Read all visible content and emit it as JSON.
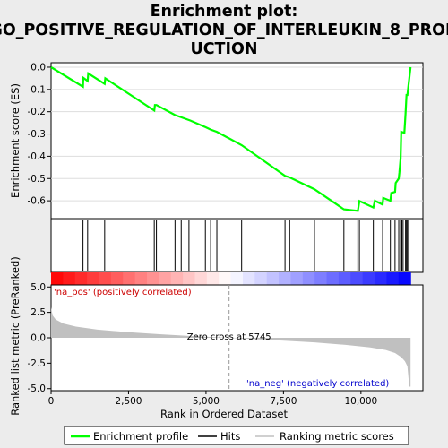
{
  "title_lines": [
    "Enrichment plot:",
    "GO_POSITIVE_REGULATION_OF_INTERLEUKIN_8_PROD",
    "UCTION"
  ],
  "chart_data": {
    "type": "line",
    "total_genes": 11600,
    "es_axis": {
      "label": "Enrichment score (ES)",
      "ylim": [
        -0.68,
        0.02
      ],
      "ticks": [
        0.0,
        -0.1,
        -0.2,
        -0.3,
        -0.4,
        -0.5,
        -0.6
      ],
      "tick_labels": [
        "0.0",
        "-0.1",
        "-0.2",
        "-0.3",
        "-0.4",
        "-0.5",
        "-0.6"
      ]
    },
    "metric_axis": {
      "label": "Ranked list metric (PreRanked)",
      "ylim": [
        -5.2,
        5.2
      ],
      "ticks": [
        5.0,
        2.5,
        0.0,
        -2.5,
        -5.0
      ],
      "tick_labels": [
        "5.0",
        "2.5",
        "0.0",
        "-2.5",
        "-5.0"
      ]
    },
    "x_axis": {
      "label": "Rank in Ordered Dataset",
      "xlim": [
        0,
        12000
      ],
      "ticks": [
        0,
        2500,
        5000,
        7500,
        10000
      ],
      "tick_labels": [
        "0",
        "2,500",
        "5,000",
        "7,500",
        "10,000"
      ]
    },
    "enrichment_profile": {
      "name": "Enrichment profile",
      "color": "#00ff00",
      "x": [
        0,
        1030,
        1040,
        1180,
        1200,
        1730,
        1750,
        3330,
        3350,
        3400,
        4000,
        4200,
        4500,
        5000,
        5150,
        5350,
        6150,
        7550,
        7700,
        8500,
        9450,
        9900,
        9950,
        10400,
        10450,
        10700,
        10720,
        10950,
        10980,
        11100,
        11120,
        11220,
        11240,
        11280,
        11300,
        11400,
        11440,
        11470,
        11500,
        11600
      ],
      "y": [
        0.0,
        -0.088,
        -0.048,
        -0.062,
        -0.028,
        -0.075,
        -0.05,
        -0.195,
        -0.17,
        -0.17,
        -0.215,
        -0.225,
        -0.24,
        -0.27,
        -0.28,
        -0.29,
        -0.35,
        -0.488,
        -0.495,
        -0.548,
        -0.638,
        -0.645,
        -0.601,
        -0.63,
        -0.6,
        -0.617,
        -0.587,
        -0.6,
        -0.565,
        -0.56,
        -0.52,
        -0.5,
        -0.475,
        -0.41,
        -0.29,
        -0.295,
        -0.21,
        -0.125,
        -0.125,
        0.0
      ]
    },
    "hits": {
      "name": "Hits",
      "positions": [
        1030,
        1180,
        1730,
        3330,
        3400,
        4000,
        4200,
        4450,
        4980,
        5150,
        5350,
        6150,
        7550,
        7700,
        8500,
        9450,
        9900,
        9950,
        10400,
        10700,
        10950,
        11100,
        11220,
        11280,
        11320,
        11360,
        11440,
        11470,
        11500,
        11540
      ]
    },
    "ranking_metric": {
      "name": "Ranking metric scores",
      "color": "#c0c0c0",
      "x": [
        0,
        50,
        150,
        400,
        800,
        1500,
        2500,
        3500,
        4500,
        5745,
        7000,
        8500,
        9500,
        10300,
        10800,
        11100,
        11300,
        11420,
        11500,
        11560,
        11600
      ],
      "y": [
        3.0,
        2.2,
        1.8,
        1.4,
        1.1,
        0.8,
        0.55,
        0.35,
        0.18,
        0.0,
        -0.2,
        -0.45,
        -0.7,
        -0.95,
        -1.2,
        -1.5,
        -1.9,
        -2.3,
        -2.8,
        -4.8,
        -4.8
      ]
    },
    "zero_cross": {
      "x": 5745,
      "label": "Zero cross at 5745"
    },
    "pos_label": "'na_pos' (positively correlated)",
    "neg_label": "'na_neg' (negatively correlated)",
    "pos_color": "#cc0000",
    "neg_color": "#0000cc",
    "legend": [
      "Enrichment profile",
      "Hits",
      "Ranking metric scores"
    ]
  }
}
